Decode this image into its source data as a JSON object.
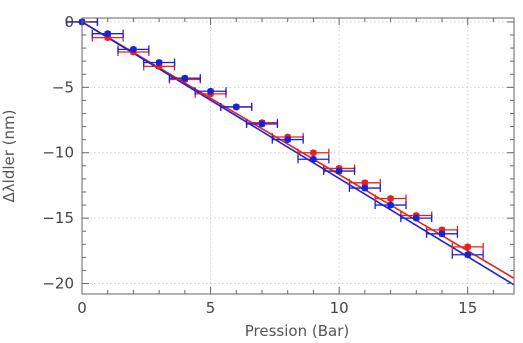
{
  "chart_data": {
    "type": "scatter",
    "title": "",
    "xlabel": "Pression (Bar)",
    "ylabel": "Δλldler (nm)",
    "xlim": [
      0,
      16.8
    ],
    "ylim": [
      -20.8,
      0.3
    ],
    "xticks": [
      0,
      5,
      10,
      15
    ],
    "yticks": [
      0,
      -5,
      -10,
      -15,
      -20
    ],
    "xtick_labels": [
      "0",
      "5",
      "10",
      "15"
    ],
    "ytick_labels": [
      "0",
      "−5",
      "−10",
      "−15",
      "−20"
    ],
    "grid": true,
    "legend": "none",
    "series": [
      {
        "color": "#e8201e",
        "x": [
          0,
          1,
          2,
          3,
          4,
          5,
          6,
          7,
          8,
          9,
          10,
          11,
          12,
          13,
          14,
          15
        ],
        "y": [
          0,
          -1.2,
          -2.3,
          -3.4,
          -4.4,
          -5.5,
          -6.5,
          -7.7,
          -8.8,
          -10.0,
          -11.2,
          -12.3,
          -13.5,
          -14.8,
          -15.9,
          -17.2
        ],
        "x_error": 0.6,
        "y_error": 0.15,
        "fit": {
          "x": [
            0,
            16.8
          ],
          "y": [
            0,
            -19.6
          ]
        }
      },
      {
        "color": "#1a22d6",
        "x": [
          0,
          1,
          2,
          3,
          4,
          5,
          6,
          7,
          8,
          9,
          10,
          11,
          12,
          13,
          14,
          15
        ],
        "y": [
          0,
          -0.9,
          -2.1,
          -3.1,
          -4.3,
          -5.3,
          -6.5,
          -7.8,
          -9.0,
          -10.5,
          -11.4,
          -12.7,
          -14.0,
          -15.0,
          -16.2,
          -17.8
        ],
        "x_error": 0.6,
        "y_error": 0.15,
        "fit": {
          "x": [
            0,
            16.8
          ],
          "y": [
            0,
            -20.1
          ]
        }
      }
    ]
  }
}
